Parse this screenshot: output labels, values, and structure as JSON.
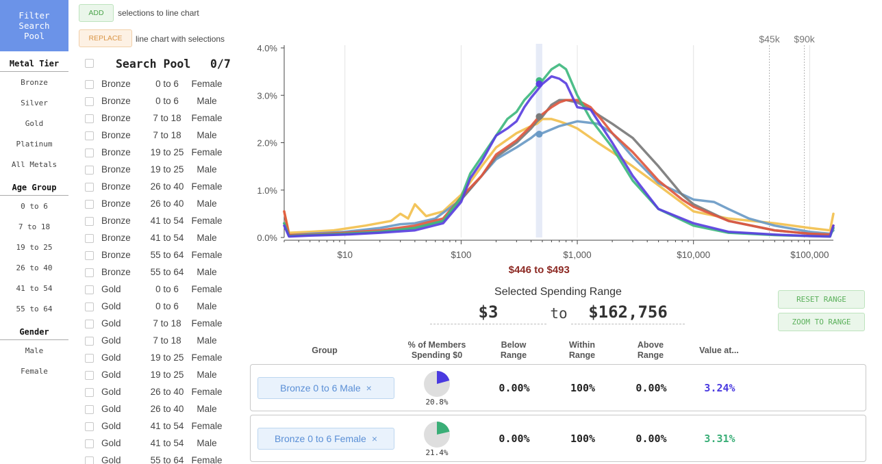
{
  "filter": {
    "button": "Filter\nSearch\nPool",
    "sections": [
      {
        "heading": "Metal Tier",
        "items": [
          "Bronze",
          "Silver",
          "Gold",
          "Platinum",
          "All Metals"
        ]
      },
      {
        "heading": "Age Group",
        "items": [
          "0 to 6",
          "7 to 18",
          "19 to 25",
          "26 to 40",
          "41 to 54",
          "55 to 64"
        ]
      },
      {
        "heading": "Gender",
        "items": [
          "Male",
          "Female"
        ]
      }
    ]
  },
  "actions": {
    "add_label": "ADD",
    "add_text": "selections to line chart",
    "replace_label": "REPLACE",
    "replace_text": "line chart with selections"
  },
  "pool": {
    "title": "Search Pool",
    "count": "0/7",
    "rows": [
      {
        "tier": "Bronze",
        "age": "0 to 6",
        "gender": "Female"
      },
      {
        "tier": "Bronze",
        "age": "0 to 6",
        "gender": "Male"
      },
      {
        "tier": "Bronze",
        "age": "7 to 18",
        "gender": "Female"
      },
      {
        "tier": "Bronze",
        "age": "7 to 18",
        "gender": "Male"
      },
      {
        "tier": "Bronze",
        "age": "19 to 25",
        "gender": "Female"
      },
      {
        "tier": "Bronze",
        "age": "19 to 25",
        "gender": "Male"
      },
      {
        "tier": "Bronze",
        "age": "26 to 40",
        "gender": "Female"
      },
      {
        "tier": "Bronze",
        "age": "26 to 40",
        "gender": "Male"
      },
      {
        "tier": "Bronze",
        "age": "41 to 54",
        "gender": "Female"
      },
      {
        "tier": "Bronze",
        "age": "41 to 54",
        "gender": "Male"
      },
      {
        "tier": "Bronze",
        "age": "55 to 64",
        "gender": "Female"
      },
      {
        "tier": "Bronze",
        "age": "55 to 64",
        "gender": "Male"
      },
      {
        "tier": "Gold",
        "age": "0 to 6",
        "gender": "Female"
      },
      {
        "tier": "Gold",
        "age": "0 to 6",
        "gender": "Male"
      },
      {
        "tier": "Gold",
        "age": "7 to 18",
        "gender": "Female"
      },
      {
        "tier": "Gold",
        "age": "7 to 18",
        "gender": "Male"
      },
      {
        "tier": "Gold",
        "age": "19 to 25",
        "gender": "Female"
      },
      {
        "tier": "Gold",
        "age": "19 to 25",
        "gender": "Male"
      },
      {
        "tier": "Gold",
        "age": "26 to 40",
        "gender": "Female"
      },
      {
        "tier": "Gold",
        "age": "26 to 40",
        "gender": "Male"
      },
      {
        "tier": "Gold",
        "age": "41 to 54",
        "gender": "Female"
      },
      {
        "tier": "Gold",
        "age": "41 to 54",
        "gender": "Male"
      },
      {
        "tier": "Gold",
        "age": "55 to 64",
        "gender": "Female"
      }
    ]
  },
  "chart_data": {
    "type": "line",
    "x_scale": "log",
    "xlim": [
      3,
      160000
    ],
    "ylim": [
      0,
      4.0
    ],
    "y_ticks": [
      "0.0%",
      "1.0%",
      "2.0%",
      "3.0%",
      "4.0%"
    ],
    "y_tick_values": [
      0,
      1,
      2,
      3,
      4
    ],
    "x_ticks": [
      "$10",
      "$100",
      "$1,000",
      "$10,000",
      "$100,000"
    ],
    "x_tick_values": [
      10,
      100,
      1000,
      10000,
      100000
    ],
    "markers": [
      {
        "label": "$45k",
        "x": 45000
      },
      {
        "label": "$90k",
        "x": 90000
      }
    ],
    "selection_label": "$446 to $493",
    "selection": [
      446,
      493
    ],
    "grid": true,
    "colors": {
      "blue": "#5a40e0",
      "green": "#3fb97f",
      "red": "#de5840",
      "gray": "#7a7a7a",
      "steel": "#6a9ac6",
      "yellow": "#f2c04e"
    },
    "series": [
      {
        "color": "#f2c04e",
        "x": [
          3,
          3.3,
          5,
          8,
          15,
          25,
          30,
          35,
          40,
          50,
          70,
          100,
          150,
          200,
          300,
          400,
          450,
          500,
          600,
          700,
          800,
          900,
          1000,
          1500,
          2000,
          3000,
          5000,
          10000,
          20000,
          50000,
          100000,
          150000,
          160000
        ],
        "y": [
          0.55,
          0.1,
          0.12,
          0.15,
          0.25,
          0.35,
          0.5,
          0.4,
          0.7,
          0.45,
          0.55,
          0.9,
          1.5,
          1.9,
          2.2,
          2.35,
          2.4,
          2.5,
          2.5,
          2.45,
          2.4,
          2.35,
          2.3,
          2.0,
          1.8,
          1.5,
          1.1,
          0.55,
          0.4,
          0.3,
          0.2,
          0.15,
          0.5
        ]
      },
      {
        "color": "#6a9ac6",
        "x": [
          3,
          3.3,
          5,
          10,
          20,
          30,
          40,
          60,
          100,
          150,
          200,
          300,
          400,
          450,
          500,
          700,
          1000,
          1500,
          2000,
          3000,
          5000,
          10000,
          15000,
          20000,
          30000,
          50000,
          100000,
          150000,
          160000
        ],
        "y": [
          0.3,
          0.05,
          0.08,
          0.12,
          0.2,
          0.28,
          0.3,
          0.4,
          0.8,
          1.3,
          1.65,
          1.9,
          2.1,
          2.2,
          2.2,
          2.35,
          2.45,
          2.4,
          2.2,
          1.7,
          1.15,
          0.8,
          0.75,
          0.6,
          0.4,
          0.25,
          0.12,
          0.08,
          0.15
        ]
      },
      {
        "color": "#7a7a7a",
        "x": [
          3,
          3.3,
          5,
          10,
          20,
          40,
          70,
          100,
          150,
          200,
          300,
          400,
          450,
          500,
          600,
          700,
          800,
          1000,
          1300,
          1600,
          2000,
          3000,
          5000,
          8000,
          10000,
          20000,
          50000,
          100000,
          150000,
          160000
        ],
        "y": [
          0.3,
          0.04,
          0.05,
          0.08,
          0.12,
          0.2,
          0.35,
          0.8,
          1.3,
          1.7,
          2.0,
          2.3,
          2.45,
          2.55,
          2.8,
          2.9,
          2.9,
          2.85,
          2.7,
          2.55,
          2.4,
          2.1,
          1.5,
          0.9,
          0.7,
          0.35,
          0.15,
          0.08,
          0.05,
          0.2
        ]
      },
      {
        "color": "#de5840",
        "x": [
          3,
          3.3,
          5,
          10,
          20,
          40,
          70,
          100,
          150,
          200,
          300,
          400,
          450,
          500,
          600,
          700,
          800,
          1000,
          1300,
          1600,
          2000,
          3000,
          5000,
          8000,
          10000,
          20000,
          50000,
          100000,
          150000,
          160000
        ],
        "y": [
          0.55,
          0.05,
          0.06,
          0.1,
          0.15,
          0.25,
          0.4,
          0.85,
          1.3,
          1.75,
          2.05,
          2.35,
          2.5,
          2.6,
          2.75,
          2.85,
          2.9,
          2.9,
          2.75,
          2.5,
          2.2,
          1.8,
          1.2,
          0.8,
          0.65,
          0.35,
          0.15,
          0.08,
          0.06,
          0.25
        ]
      },
      {
        "color": "#3fb97f",
        "x": [
          3,
          3.3,
          5,
          10,
          20,
          40,
          70,
          100,
          120,
          150,
          200,
          250,
          300,
          350,
          400,
          450,
          500,
          600,
          700,
          800,
          1000,
          1300,
          2000,
          3000,
          5000,
          10000,
          20000,
          50000,
          100000,
          150000,
          160000
        ],
        "y": [
          0.3,
          0.03,
          0.05,
          0.08,
          0.12,
          0.2,
          0.35,
          0.85,
          1.35,
          1.7,
          2.15,
          2.5,
          2.65,
          2.9,
          3.05,
          3.2,
          3.31,
          3.55,
          3.65,
          3.55,
          3.0,
          2.5,
          1.9,
          1.2,
          0.6,
          0.25,
          0.1,
          0.05,
          0.03,
          0.02,
          0.2
        ]
      },
      {
        "color": "#5a40e0",
        "x": [
          3,
          3.3,
          5,
          10,
          20,
          40,
          70,
          100,
          120,
          150,
          200,
          250,
          300,
          350,
          400,
          450,
          500,
          600,
          700,
          800,
          1000,
          1300,
          2000,
          3000,
          5000,
          10000,
          20000,
          50000,
          100000,
          150000,
          160000
        ],
        "y": [
          0.25,
          0.02,
          0.04,
          0.06,
          0.1,
          0.15,
          0.3,
          0.75,
          1.25,
          1.6,
          2.15,
          2.3,
          2.45,
          2.75,
          2.95,
          3.1,
          3.24,
          3.4,
          3.35,
          3.25,
          2.75,
          2.7,
          2.0,
          1.3,
          0.6,
          0.3,
          0.12,
          0.06,
          0.03,
          0.02,
          0.25
        ]
      }
    ],
    "highlight_points": [
      {
        "x": 470,
        "y": 3.31,
        "color": "#3fb97f"
      },
      {
        "x": 470,
        "y": 3.24,
        "color": "#5a40e0"
      },
      {
        "x": 470,
        "y": 2.55,
        "color": "#7a7a7a"
      },
      {
        "x": 470,
        "y": 2.18,
        "color": "#6a9ac6"
      }
    ]
  },
  "range": {
    "title": "Selected Spending Range",
    "low": "$3",
    "to": "to",
    "high": "$162,756",
    "reset_label": "RESET RANGE",
    "zoom_label": "ZOOM TO RANGE"
  },
  "table": {
    "headers": [
      "Group",
      "% of Members\nSpending $0",
      "Below\nRange",
      "Within\nRange",
      "Above\nRange",
      "Value at..."
    ],
    "rows": [
      {
        "group": "Bronze 0 to 6 Male",
        "pct_zero": "20.8%",
        "pct_zero_value": 20.8,
        "pie_color": "#4a3ae0",
        "below": "0.00%",
        "within": "100%",
        "above": "0.00%",
        "value": "3.24%",
        "value_color": "#4a3ae0"
      },
      {
        "group": "Bronze 0 to 6 Female",
        "pct_zero": "21.4%",
        "pct_zero_value": 21.4,
        "pie_color": "#3aae77",
        "below": "0.00%",
        "within": "100%",
        "above": "0.00%",
        "value": "3.31%",
        "value_color": "#3aae77"
      }
    ],
    "remove_icon": "×"
  }
}
